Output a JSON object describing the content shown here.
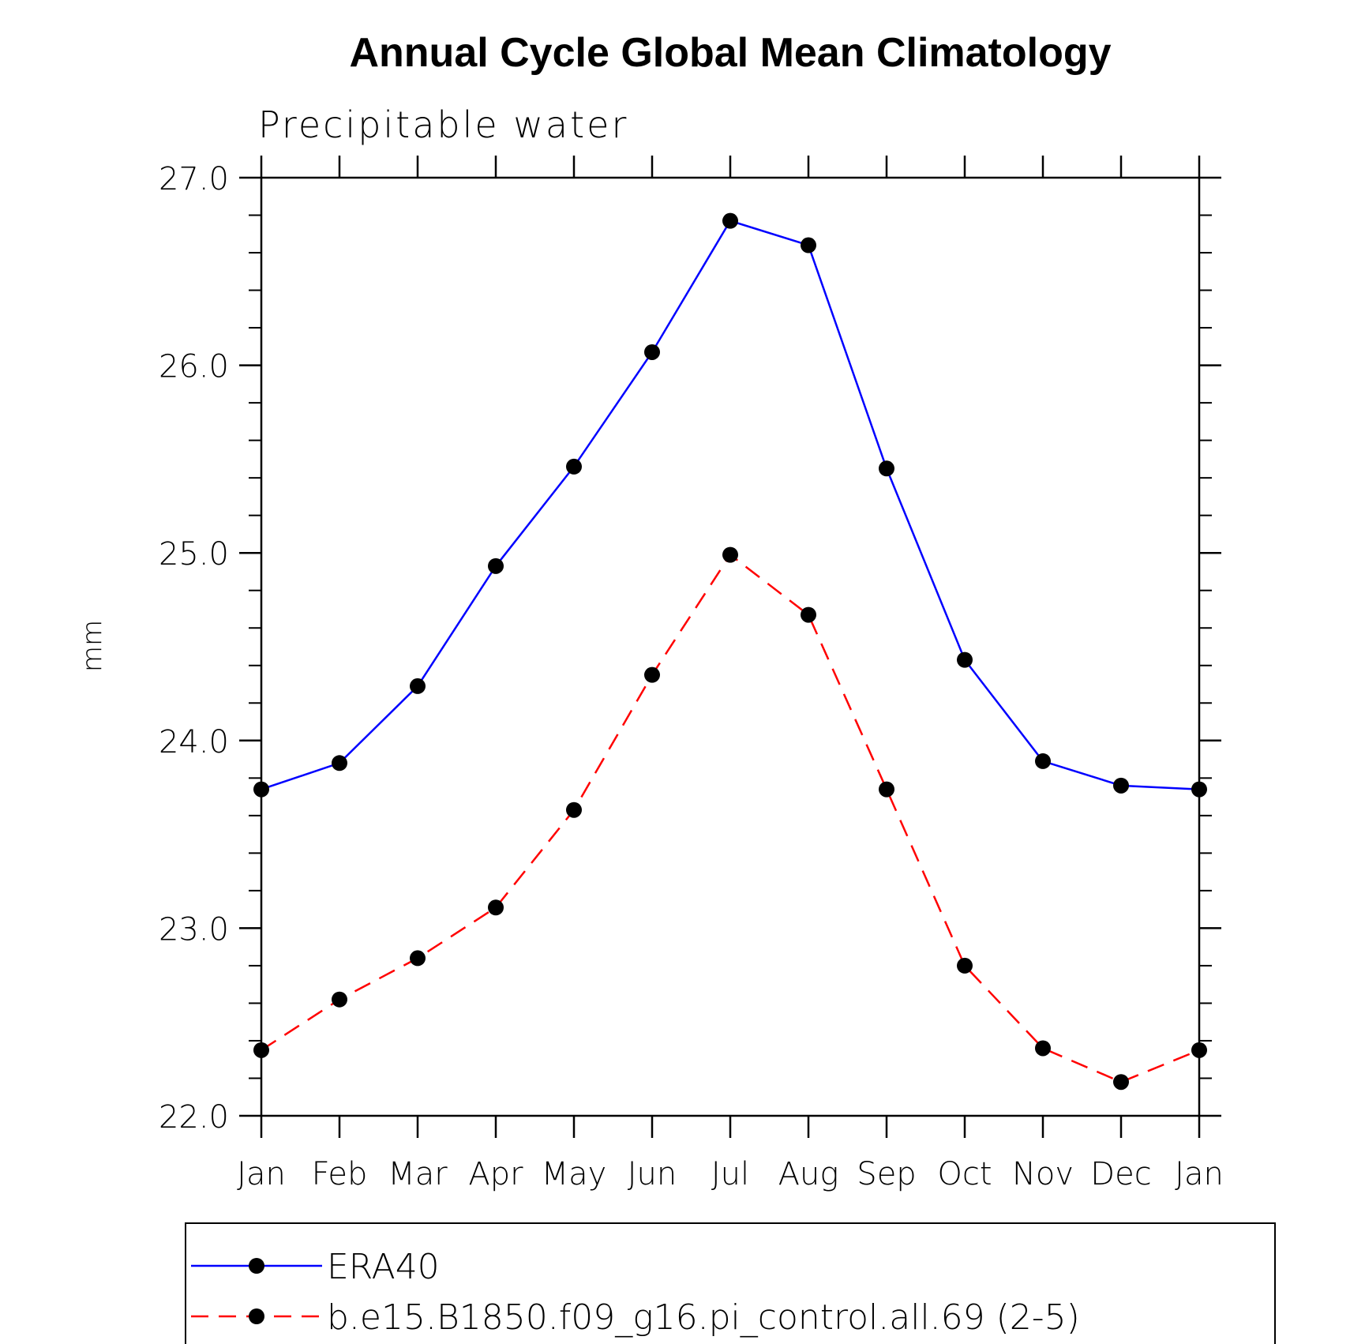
{
  "chart_data": {
    "type": "line",
    "title": "Annual Cycle Global Mean Climatology",
    "subtitle": "Precipitable water",
    "xlabel": "",
    "ylabel": "mm",
    "categories": [
      "Jan",
      "Feb",
      "Mar",
      "Apr",
      "May",
      "Jun",
      "Jul",
      "Aug",
      "Sep",
      "Oct",
      "Nov",
      "Dec",
      "Jan"
    ],
    "ylim": [
      22.0,
      27.0
    ],
    "yticks": [
      "22.0",
      "23.0",
      "24.0",
      "25.0",
      "26.0",
      "27.0"
    ],
    "ytick_values": [
      22.0,
      23.0,
      24.0,
      25.0,
      26.0,
      27.0
    ],
    "y_minor_step": 0.2,
    "grid": false,
    "legend_position": "bottom",
    "series": [
      {
        "name": "ERA40",
        "color": "#0000ff",
        "dash": "solid",
        "marker": "filled-circle",
        "values": [
          23.74,
          23.88,
          24.29,
          24.93,
          25.46,
          26.07,
          26.77,
          26.64,
          25.45,
          24.43,
          23.89,
          23.76,
          23.74
        ]
      },
      {
        "name": "b.e15.B1850.f09_g16.pi_control.all.69 (2-5)",
        "color": "#ff0000",
        "dash": "dashed",
        "marker": "filled-circle",
        "values": [
          22.35,
          22.62,
          22.84,
          23.11,
          23.63,
          24.35,
          24.99,
          24.67,
          23.74,
          22.8,
          22.36,
          22.18,
          22.35
        ]
      }
    ]
  }
}
